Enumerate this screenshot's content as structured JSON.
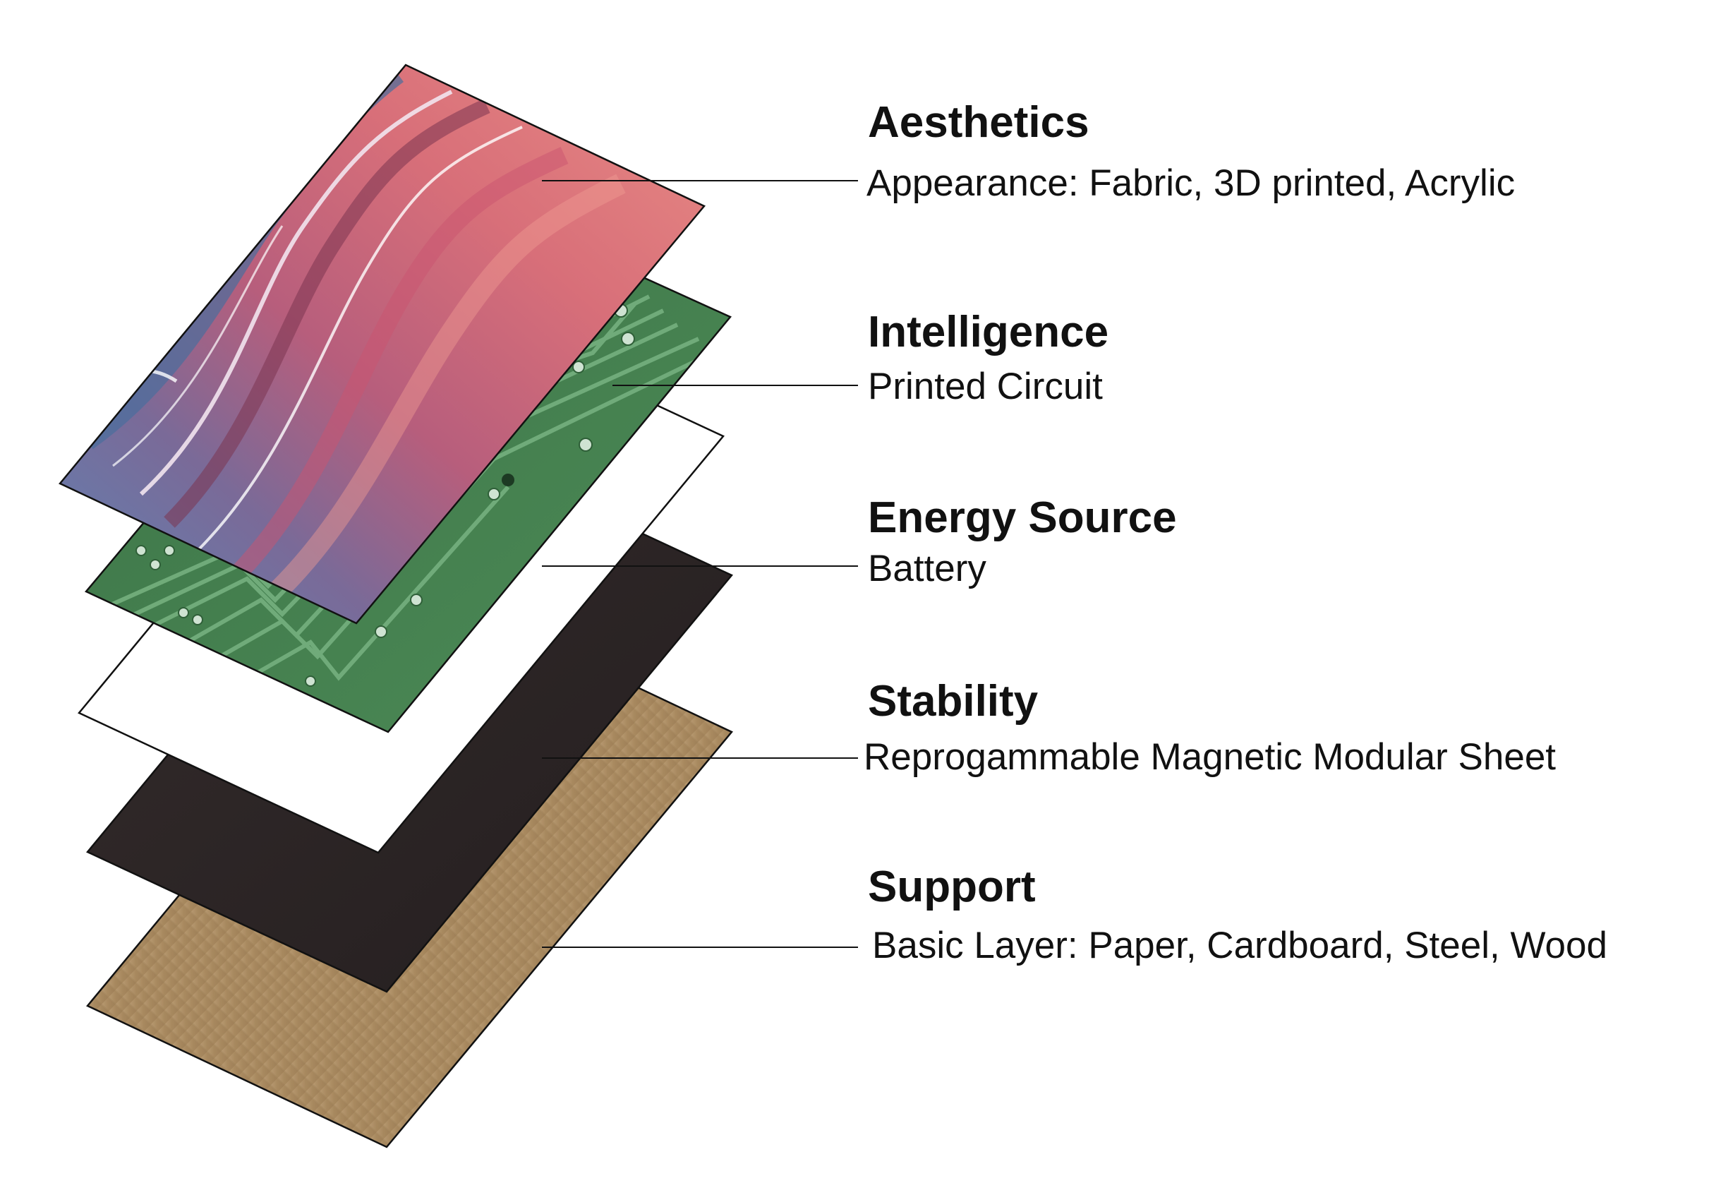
{
  "layers": [
    {
      "title": "Aesthetics",
      "description": "Appearance: Fabric, 3D printed, Acrylic",
      "material": "marbled-pattern"
    },
    {
      "title": "Intelligence",
      "description": "Printed Circuit",
      "material": "green-circuit-board"
    },
    {
      "title": "Energy Source",
      "description": "Battery",
      "material": "white-sheet"
    },
    {
      "title": "Stability",
      "description": "Reprogammable Magnetic Modular Sheet",
      "material": "black-magnetic-sheet"
    },
    {
      "title": "Support",
      "description": "Basic Layer: Paper, Cardboard, Steel, Wood",
      "material": "cardboard"
    }
  ],
  "colors": {
    "text": "#111111",
    "circuit_green": "#3f7a4a",
    "circuit_trace": "#6fa878",
    "magnetic_sheet": "#2b2424",
    "cardboard": "#b0916a",
    "marble_pink": "#e07878",
    "marble_blue": "#5d7fad"
  }
}
